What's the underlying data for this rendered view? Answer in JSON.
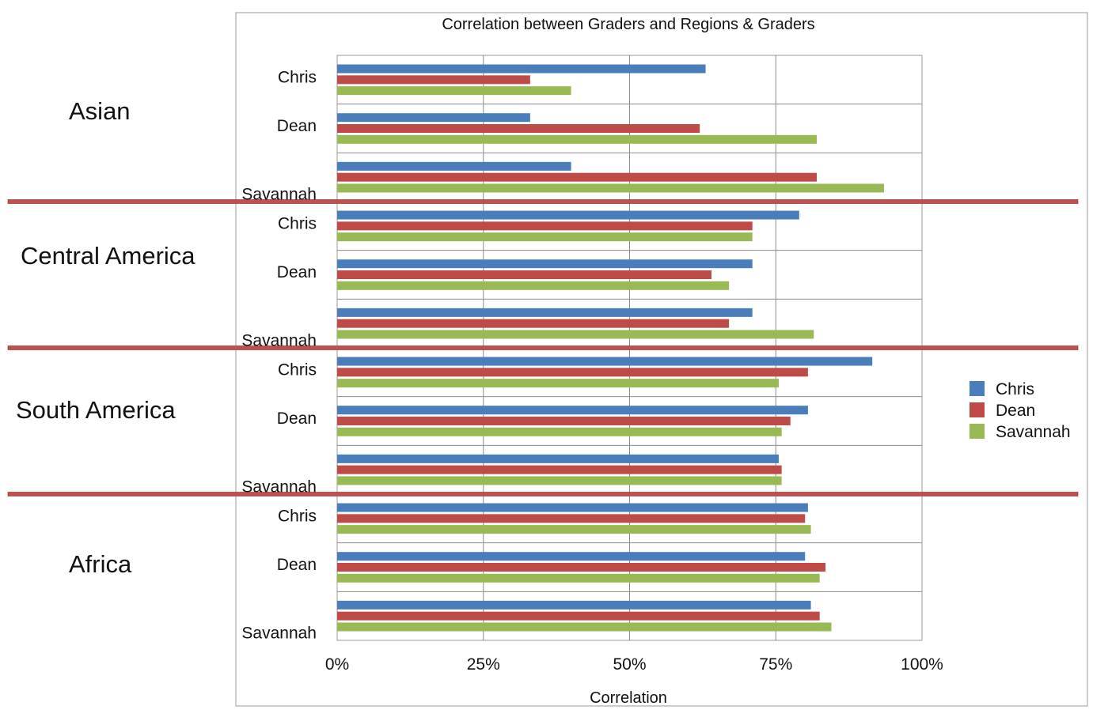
{
  "chart_data": {
    "type": "bar",
    "orientation": "horizontal",
    "title": "Correlation between Graders and Regions & Graders",
    "xlabel": "Correlation",
    "ylabel": "",
    "xlim": [
      0,
      100
    ],
    "x_ticks": [
      "0%",
      "25%",
      "50%",
      "75%",
      "100%"
    ],
    "grid": true,
    "legend_position": "right",
    "series": [
      {
        "name": "Chris",
        "color": "#4a7ebb"
      },
      {
        "name": "Dean",
        "color": "#be4b48"
      },
      {
        "name": "Savannah",
        "color": "#98b954"
      }
    ],
    "groups": [
      {
        "region": "Asian",
        "rows": [
          {
            "label": "Chris",
            "values": [
              63,
              33,
              40
            ]
          },
          {
            "label": "Dean",
            "values": [
              33,
              62,
              82
            ]
          },
          {
            "label": "Savannah",
            "values": [
              40,
              82,
              93.5
            ]
          }
        ]
      },
      {
        "region": "Central America",
        "rows": [
          {
            "label": "Chris",
            "values": [
              79,
              71,
              71
            ]
          },
          {
            "label": "Dean",
            "values": [
              71,
              64,
              67
            ]
          },
          {
            "label": "Savannah",
            "values": [
              71,
              67,
              81.5
            ]
          }
        ]
      },
      {
        "region": "South America",
        "rows": [
          {
            "label": "Chris",
            "values": [
              91.5,
              80.5,
              75.5
            ]
          },
          {
            "label": "Dean",
            "values": [
              80.5,
              77.5,
              76
            ]
          },
          {
            "label": "Savannah",
            "values": [
              75.5,
              76,
              76
            ]
          }
        ]
      },
      {
        "region": "Africa",
        "rows": [
          {
            "label": "Chris",
            "values": [
              80.5,
              80,
              81
            ]
          },
          {
            "label": "Dean",
            "values": [
              80,
              83.5,
              82.5
            ]
          },
          {
            "label": "Savannah",
            "values": [
              81,
              82.5,
              84.5
            ]
          }
        ]
      }
    ],
    "separator_color": "#c0504d",
    "frame_color": "#999999",
    "grid_color": "#8c8c8c"
  }
}
